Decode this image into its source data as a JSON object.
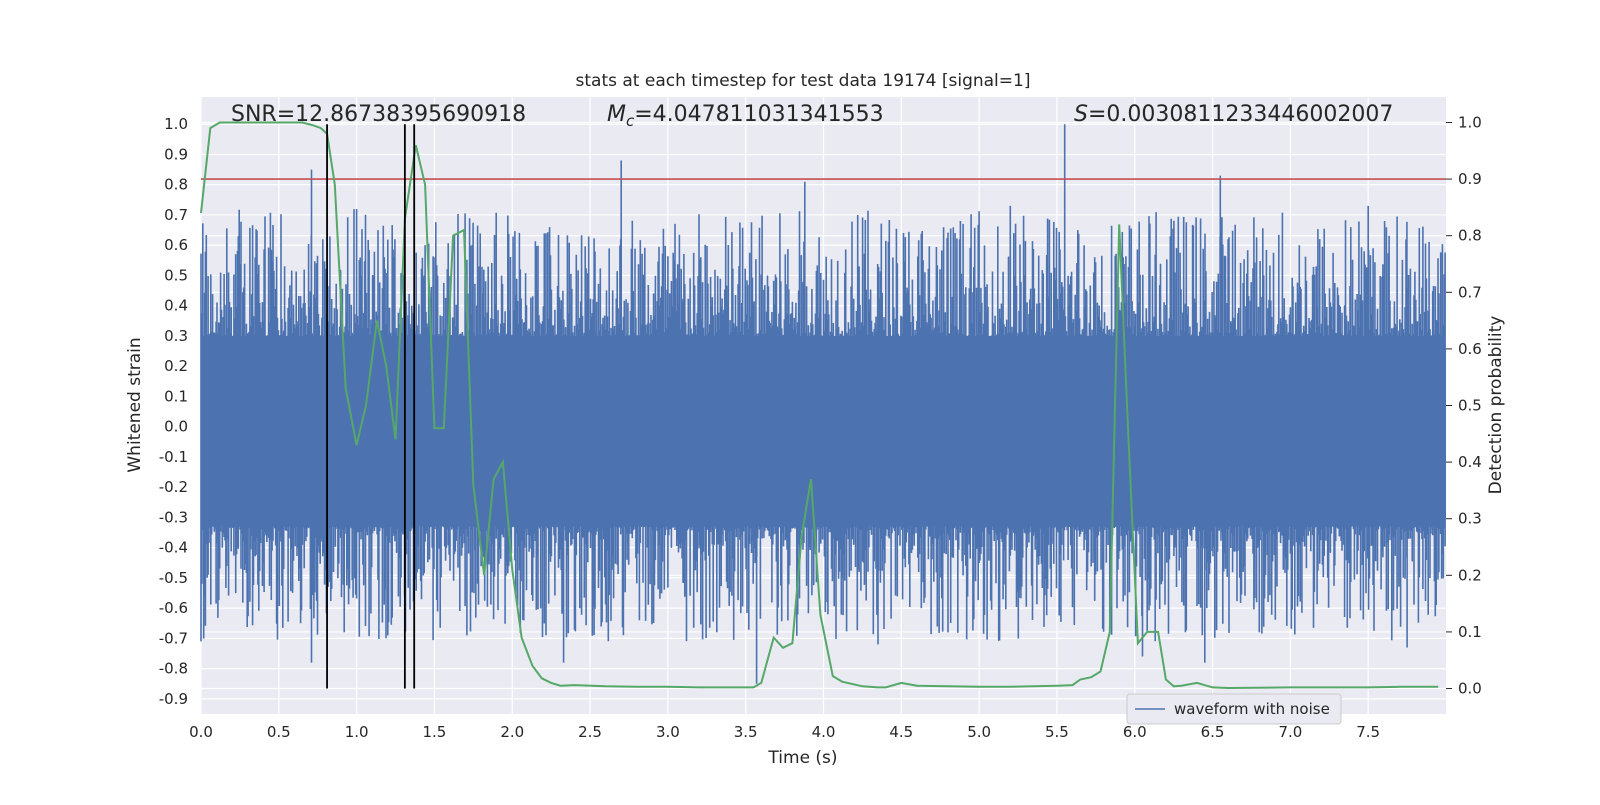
{
  "chart_data": {
    "type": "line",
    "title": "stats at each timestep for test data 19174 [signal=1]",
    "xlabel": "Time (s)",
    "ylabel_left": "Whitened strain",
    "ylabel_right": "Detection probability",
    "xlim": [
      0.0,
      8.0
    ],
    "ylim_left": [
      -0.95,
      1.09
    ],
    "ylim_right": [
      -0.045,
      1.045
    ],
    "x_ticks": [
      "0.0",
      "0.5",
      "1.0",
      "1.5",
      "2.0",
      "2.5",
      "3.0",
      "3.5",
      "4.0",
      "4.5",
      "5.0",
      "5.5",
      "6.0",
      "6.5",
      "7.0",
      "7.5"
    ],
    "y_ticks_left": [
      "1.0",
      "0.9",
      "0.8",
      "0.7",
      "0.6",
      "0.5",
      "0.4",
      "0.3",
      "0.2",
      "0.1",
      "0.0",
      "-0.1",
      "-0.2",
      "-0.3",
      "-0.4",
      "-0.5",
      "-0.6",
      "-0.7",
      "-0.8",
      "-0.9"
    ],
    "y_ticks_right": [
      "1.0",
      "0.9",
      "0.8",
      "0.7",
      "0.6",
      "0.5",
      "0.4",
      "0.3",
      "0.2",
      "0.1",
      "0.0"
    ],
    "grid": true,
    "annotations": {
      "snr": "SNR=12.86738395690918",
      "mc_symbol": "M",
      "mc_sub": "c",
      "mc_value": "=4.047811031341553",
      "s_symbol": "S",
      "s_value": "=0.0030811233446002007"
    },
    "legend": {
      "label": "waveform with noise",
      "position": "lower-right"
    },
    "colors": {
      "background": "#eaeaf2",
      "grid": "#ffffff",
      "waveform": "#4c72b0",
      "probability": "#55a868",
      "threshold": "#c44e52",
      "markers": "#000000"
    },
    "threshold": 0.9,
    "vertical_markers": [
      0.81,
      1.31,
      1.37
    ],
    "waveform": {
      "name": "waveform with noise",
      "band_top": 0.26,
      "band_bottom": -0.3,
      "peaks": [
        {
          "x": 0.71,
          "y": 0.85
        },
        {
          "x": 0.71,
          "y": -0.78
        },
        {
          "x": 2.7,
          "y": 0.88
        },
        {
          "x": 3.88,
          "y": 0.81
        },
        {
          "x": 5.55,
          "y": 1.0
        },
        {
          "x": 6.55,
          "y": 0.83
        },
        {
          "x": 3.57,
          "y": -0.85
        },
        {
          "x": 2.33,
          "y": -0.78
        },
        {
          "x": 4.35,
          "y": -0.72
        },
        {
          "x": 6.45,
          "y": -0.78
        },
        {
          "x": 7.75,
          "y": -0.73
        },
        {
          "x": 7.5,
          "y": 0.73
        },
        {
          "x": 0.0,
          "y": -0.71
        },
        {
          "x": 1.2,
          "y": -0.69
        },
        {
          "x": 1.65,
          "y": 0.64
        },
        {
          "x": 4.22,
          "y": 0.7
        },
        {
          "x": 5.2,
          "y": 0.73
        },
        {
          "x": 6.05,
          "y": -0.76
        }
      ]
    },
    "series": [
      {
        "name": "",
        "axis": "right",
        "x": [
          0.0,
          0.06,
          0.12,
          0.25,
          0.5,
          0.65,
          0.72,
          0.77,
          0.81,
          0.86,
          0.93,
          1.0,
          1.06,
          1.13,
          1.19,
          1.25,
          1.31,
          1.38,
          1.44,
          1.5,
          1.56,
          1.62,
          1.69,
          1.75,
          1.82,
          1.88,
          1.94,
          2.0,
          2.06,
          2.13,
          2.19,
          2.25,
          2.31,
          2.4,
          2.6,
          2.8,
          3.0,
          3.2,
          3.4,
          3.55,
          3.6,
          3.65,
          3.68,
          3.74,
          3.8,
          3.86,
          3.92,
          3.98,
          4.06,
          4.12,
          4.25,
          4.35,
          4.4,
          4.5,
          4.6,
          5.0,
          5.2,
          5.5,
          5.6,
          5.65,
          5.72,
          5.78,
          5.84,
          5.9,
          5.96,
          6.02,
          6.08,
          6.15,
          6.2,
          6.25,
          6.3,
          6.4,
          6.5,
          6.6,
          7.0,
          7.5,
          7.7,
          7.95
        ],
        "y": [
          0.84,
          0.99,
          1.0,
          1.0,
          1.0,
          1.0,
          0.995,
          0.99,
          0.98,
          0.89,
          0.53,
          0.43,
          0.5,
          0.65,
          0.57,
          0.44,
          0.83,
          0.96,
          0.89,
          0.46,
          0.46,
          0.8,
          0.81,
          0.36,
          0.2,
          0.37,
          0.4,
          0.21,
          0.09,
          0.04,
          0.018,
          0.01,
          0.005,
          0.006,
          0.004,
          0.003,
          0.003,
          0.002,
          0.002,
          0.002,
          0.01,
          0.06,
          0.09,
          0.072,
          0.08,
          0.27,
          0.37,
          0.13,
          0.022,
          0.012,
          0.004,
          0.002,
          0.002,
          0.01,
          0.005,
          0.003,
          0.003,
          0.005,
          0.006,
          0.016,
          0.02,
          0.03,
          0.1,
          0.82,
          0.44,
          0.08,
          0.1,
          0.1,
          0.016,
          0.004,
          0.005,
          0.01,
          0.002,
          0.001,
          0.002,
          0.002,
          0.003,
          0.003
        ]
      }
    ]
  }
}
